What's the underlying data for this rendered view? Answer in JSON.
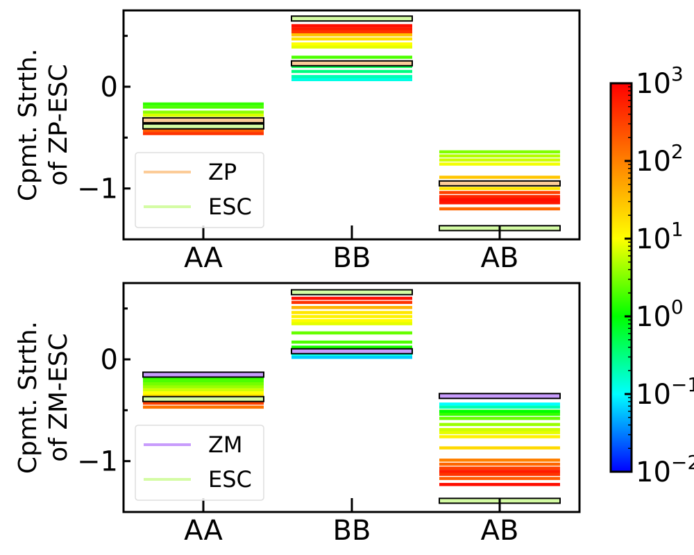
{
  "chart_data": [
    {
      "type": "bar",
      "subtype": "horizontal-level-lines",
      "ylabel": "Cpmt. Strth.\nof ZP-ESC",
      "categories": [
        "AA",
        "BB",
        "AB"
      ],
      "yticks": [
        {
          "value": 0,
          "label": "0"
        },
        {
          "value": -1,
          "label": "−1"
        }
      ],
      "ylim": [
        -1.5,
        0.75
      ],
      "legend": {
        "placement": "lower-left",
        "entries": [
          {
            "label": "ZP",
            "color": "#fccc98"
          },
          {
            "label": "ESC",
            "color": "#d4fca4"
          }
        ]
      },
      "series": [
        {
          "name": "ZP",
          "values": [
            -0.33,
            0.23,
            -0.95
          ]
        },
        {
          "name": "ESC",
          "values": [
            -0.39,
            0.67,
            -1.39
          ]
        }
      ],
      "level_lines": [
        {
          "category": "AA",
          "lines": [
            {
              "y": -0.17,
              "log_weight": 0.2
            },
            {
              "y": -0.2,
              "log_weight": 0.3
            },
            {
              "y": -0.25,
              "log_weight": 0.55
            },
            {
              "y": -0.28,
              "log_weight": 0.85
            },
            {
              "y": -0.32,
              "log_weight": 1.2
            },
            {
              "y": -0.36,
              "log_weight": 1.75
            },
            {
              "y": -0.43,
              "log_weight": 2.3
            },
            {
              "y": -0.46,
              "log_weight": 2.6
            }
          ]
        },
        {
          "category": "BB",
          "lines": [
            {
              "y": 0.07,
              "log_weight": -0.9
            },
            {
              "y": 0.1,
              "log_weight": -0.7
            },
            {
              "y": 0.15,
              "log_weight": -0.5
            },
            {
              "y": 0.2,
              "log_weight": -0.3
            },
            {
              "y": 0.29,
              "log_weight": 0.3
            },
            {
              "y": 0.39,
              "log_weight": 0.9
            },
            {
              "y": 0.42,
              "log_weight": 1.0
            },
            {
              "y": 0.47,
              "log_weight": 1.25
            },
            {
              "y": 0.51,
              "log_weight": 1.5
            },
            {
              "y": 0.54,
              "log_weight": 2.6
            },
            {
              "y": 0.57,
              "log_weight": 2.8
            },
            {
              "y": 0.6,
              "log_weight": 2.9
            }
          ]
        },
        {
          "category": "AB",
          "lines": [
            {
              "y": -0.64,
              "log_weight": 0.5
            },
            {
              "y": -0.68,
              "log_weight": 0.7
            },
            {
              "y": -0.72,
              "log_weight": 0.8
            },
            {
              "y": -0.76,
              "log_weight": 0.95
            },
            {
              "y": -0.89,
              "log_weight": 1.45
            },
            {
              "y": -1.0,
              "log_weight": 1.2
            },
            {
              "y": -1.04,
              "log_weight": 2.5
            },
            {
              "y": -1.08,
              "log_weight": 2.7
            },
            {
              "y": -1.11,
              "log_weight": 2.9
            },
            {
              "y": -1.14,
              "log_weight": 2.85
            },
            {
              "y": -1.2,
              "log_weight": 2.2
            }
          ]
        }
      ]
    },
    {
      "type": "bar",
      "subtype": "horizontal-level-lines",
      "ylabel": "Cpmt. Strth.\nof ZM-ESC",
      "categories": [
        "AA",
        "BB",
        "AB"
      ],
      "yticks": [
        {
          "value": 0,
          "label": "0"
        },
        {
          "value": -1,
          "label": "−1"
        }
      ],
      "ylim": [
        -1.5,
        0.75
      ],
      "legend": {
        "placement": "lower-left",
        "entries": [
          {
            "label": "ZM",
            "color": "#c89cfc"
          },
          {
            "label": "ESC",
            "color": "#d4fca4"
          }
        ]
      },
      "series": [
        {
          "name": "ZM",
          "values": [
            -0.15,
            0.08,
            -0.36
          ]
        },
        {
          "name": "ESC",
          "values": [
            -0.39,
            0.66,
            -1.39
          ]
        }
      ],
      "level_lines": [
        {
          "category": "AA",
          "lines": [
            {
              "y": -0.18,
              "log_weight": 0.2
            },
            {
              "y": -0.21,
              "log_weight": 0.3
            },
            {
              "y": -0.24,
              "log_weight": 0.45
            },
            {
              "y": -0.27,
              "log_weight": 0.6
            },
            {
              "y": -0.3,
              "log_weight": 0.8
            },
            {
              "y": -0.33,
              "log_weight": 1.0
            },
            {
              "y": -0.36,
              "log_weight": 1.25
            },
            {
              "y": -0.43,
              "log_weight": 2.5
            },
            {
              "y": -0.47,
              "log_weight": 2.1
            }
          ]
        },
        {
          "category": "BB",
          "lines": [
            {
              "y": 0.02,
              "log_weight": -1.2
            },
            {
              "y": 0.05,
              "log_weight": -0.9
            },
            {
              "y": 0.12,
              "log_weight": 0.1
            },
            {
              "y": 0.17,
              "log_weight": 0.3
            },
            {
              "y": 0.26,
              "log_weight": 0.4
            },
            {
              "y": 0.35,
              "log_weight": 0.9
            },
            {
              "y": 0.38,
              "log_weight": 1.0
            },
            {
              "y": 0.42,
              "log_weight": 1.1
            },
            {
              "y": 0.46,
              "log_weight": 1.2
            },
            {
              "y": 0.51,
              "log_weight": 1.6
            },
            {
              "y": 0.56,
              "log_weight": 2.6
            },
            {
              "y": 0.6,
              "log_weight": 2.9
            }
          ]
        },
        {
          "category": "AB",
          "lines": [
            {
              "y": -0.44,
              "log_weight": -1.0
            },
            {
              "y": -0.47,
              "log_weight": -0.7
            },
            {
              "y": -0.51,
              "log_weight": 0.0
            },
            {
              "y": -0.54,
              "log_weight": 0.2
            },
            {
              "y": -0.58,
              "log_weight": 0.4
            },
            {
              "y": -0.64,
              "log_weight": 0.6
            },
            {
              "y": -0.69,
              "log_weight": 0.8
            },
            {
              "y": -0.72,
              "log_weight": 0.9
            },
            {
              "y": -0.76,
              "log_weight": 1.1
            },
            {
              "y": -0.87,
              "log_weight": 1.3
            },
            {
              "y": -0.99,
              "log_weight": 2.0
            },
            {
              "y": -1.03,
              "log_weight": 2.2
            },
            {
              "y": -1.07,
              "log_weight": 2.5
            },
            {
              "y": -1.1,
              "log_weight": 2.8
            },
            {
              "y": -1.13,
              "log_weight": 2.6
            },
            {
              "y": -1.17,
              "log_weight": 2.3
            },
            {
              "y": -1.23,
              "log_weight": 2.9
            }
          ]
        }
      ]
    }
  ],
  "colorbar": {
    "scale": "log",
    "min_exponent": -2,
    "max_exponent": 3,
    "colormap": "gist_rainbow_r",
    "ticks": [
      {
        "exponent": 3,
        "base": "10",
        "sup": "3"
      },
      {
        "exponent": 2,
        "base": "10",
        "sup": "2"
      },
      {
        "exponent": 1,
        "base": "10",
        "sup": "1"
      },
      {
        "exponent": 0,
        "base": "10",
        "sup": "0"
      },
      {
        "exponent": -1,
        "base": "10",
        "sup": "−1"
      },
      {
        "exponent": -2,
        "base": "10",
        "sup": "−2"
      }
    ]
  },
  "colors": {
    "zp_outline_fill": "#fccc98",
    "zm_outline_fill": "#c89cfc",
    "esc_outline_fill": "#d4fca4"
  }
}
